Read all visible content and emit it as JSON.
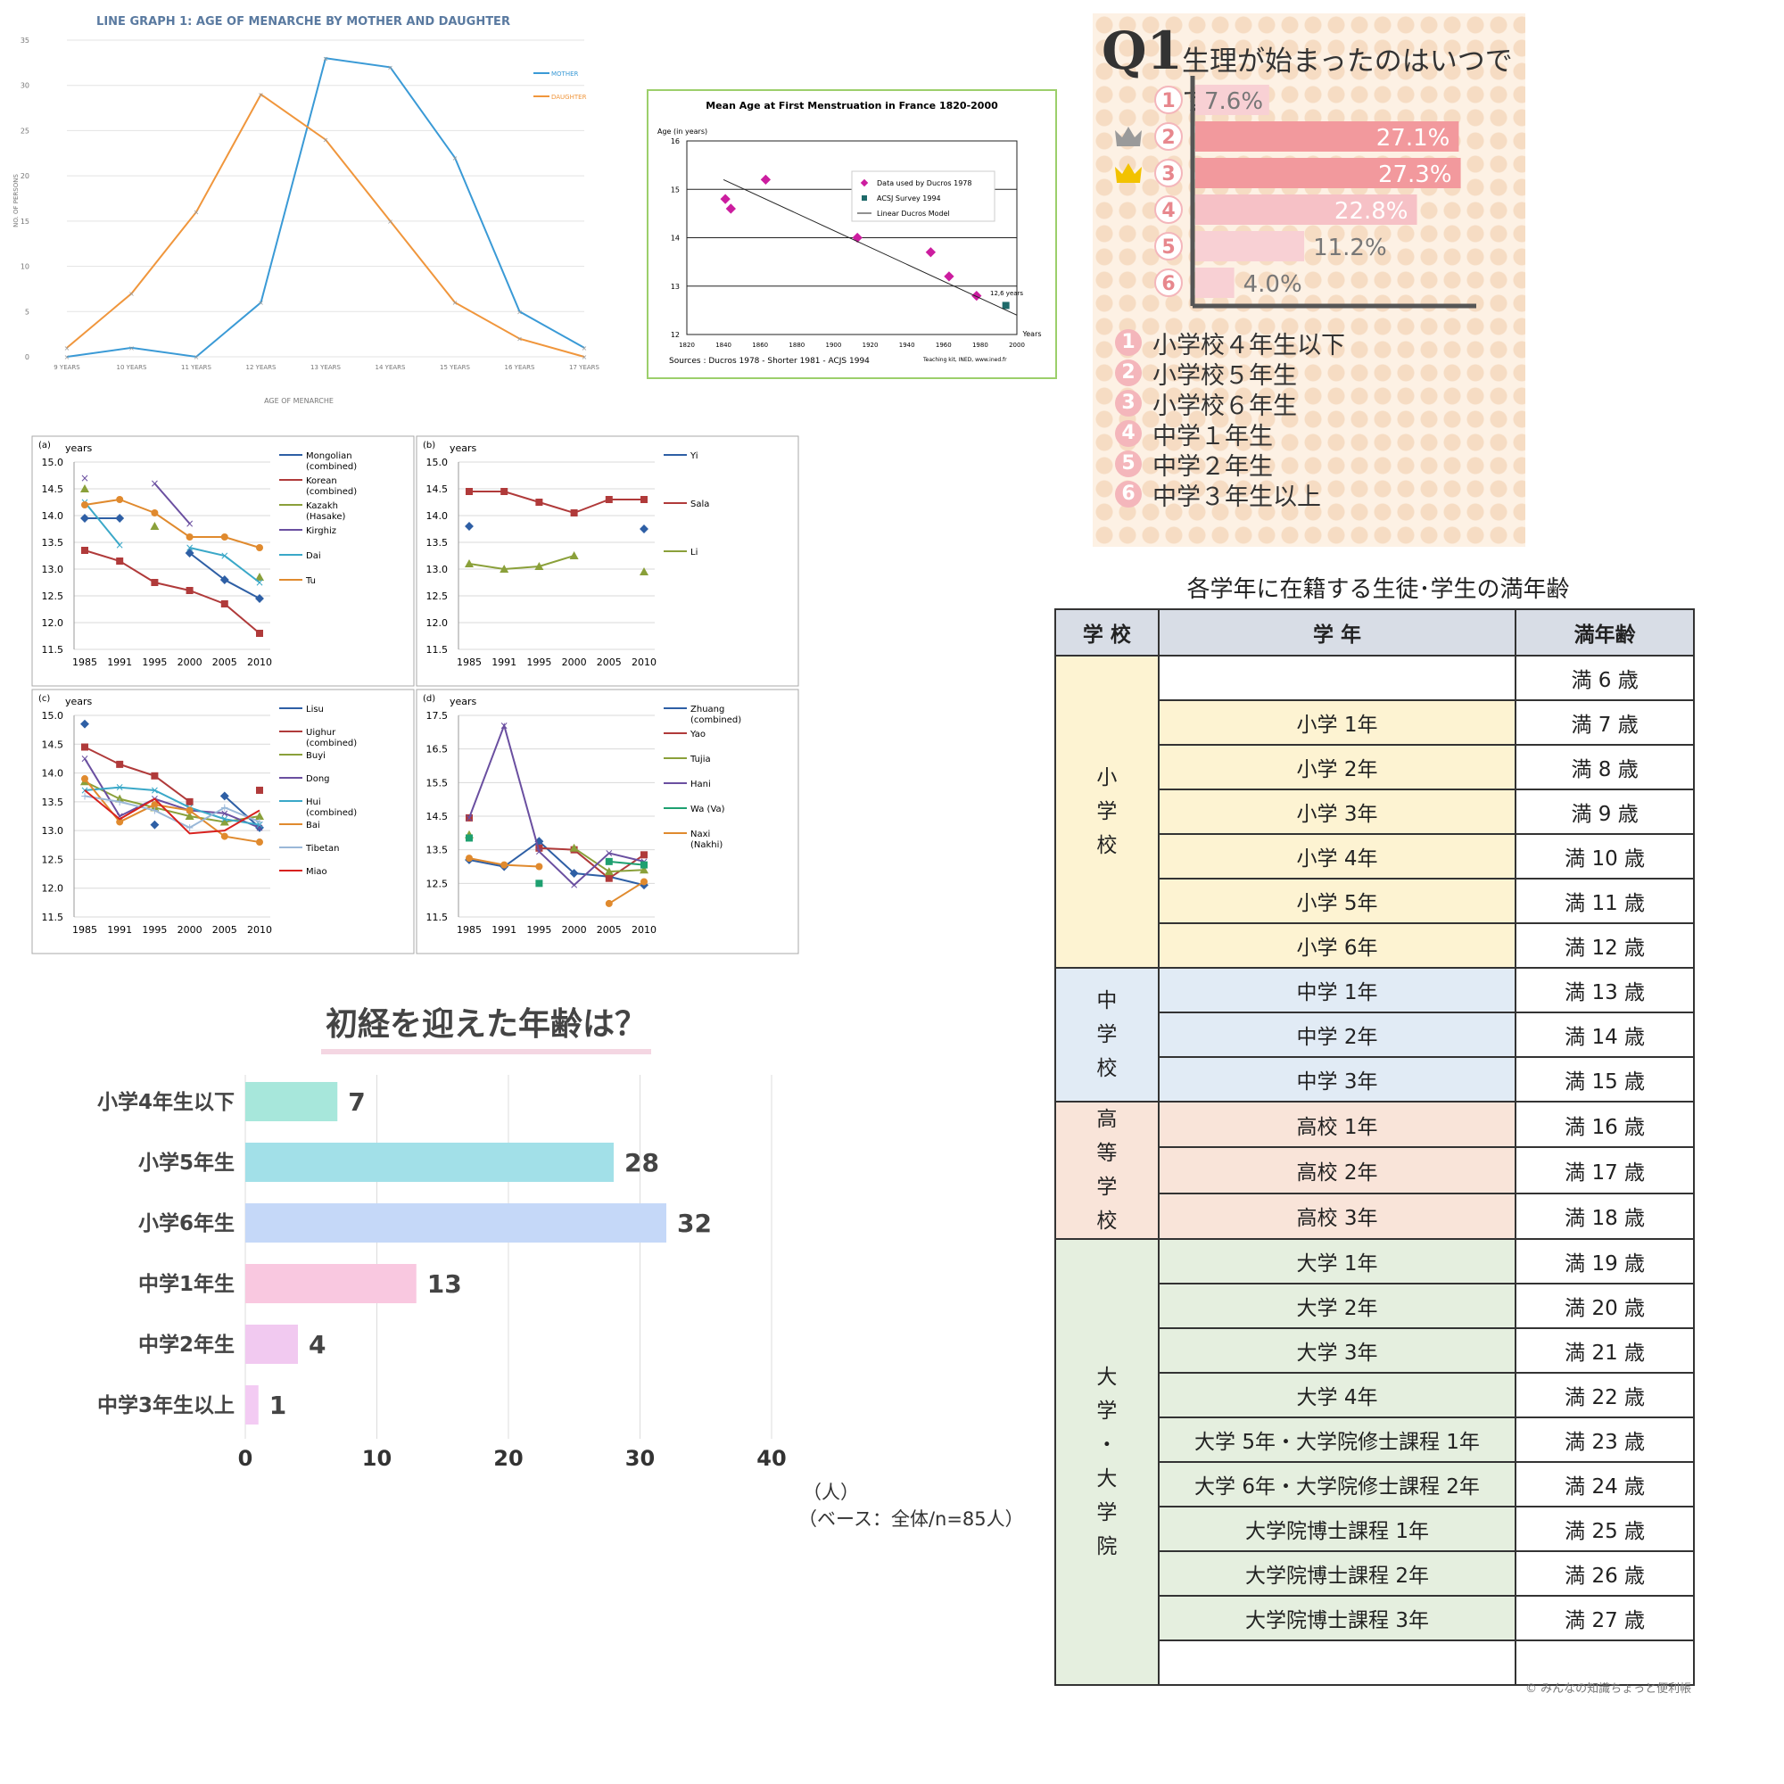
{
  "chart_data": [
    {
      "id": "mother-daughter",
      "type": "line",
      "title": "LINE GRAPH 1: AGE OF MENARCHE BY MOTHER AND DAUGHTER",
      "xlabel": "AGE OF MENARCHE",
      "ylabel": "NO. OF PERSONS",
      "categories": [
        "9 YEARS",
        "10 YEARS",
        "11 YEARS",
        "12 YEARS",
        "13 YEARS",
        "14 YEARS",
        "15 YEARS",
        "16 YEARS",
        "17 YEARS"
      ],
      "ylim": [
        0,
        35
      ],
      "yticks": [
        0,
        5,
        10,
        15,
        20,
        25,
        30,
        35
      ],
      "legend_position": "top-right",
      "series": [
        {
          "name": "MOTHER",
          "color": "#3a9ad6",
          "values": [
            0,
            1,
            0,
            6,
            33,
            32,
            22,
            5,
            1
          ]
        },
        {
          "name": "DAUGHTER",
          "color": "#f0963c",
          "values": [
            1,
            7,
            16,
            29,
            24,
            15,
            6,
            2,
            0
          ]
        }
      ]
    },
    {
      "id": "france",
      "type": "scatter",
      "title": "Mean Age at First Menstruation in France  1820-2000",
      "ylabel": "Age (in years)",
      "xlabel": "Years",
      "xlim": [
        1820,
        2000
      ],
      "ylim": [
        12,
        16
      ],
      "xticks": [
        1820,
        1840,
        1860,
        1880,
        1900,
        1920,
        1940,
        1960,
        1980,
        2000
      ],
      "yticks": [
        12,
        13,
        14,
        15,
        16
      ],
      "legend_position": "top-right",
      "annotation": "12,6 years",
      "sources": "Sources : Ducros 1978 - Shorter 1981 - ACJS 1994",
      "credit": "Teaching kit, INED, www.ined.fr",
      "series": [
        {
          "name": "Data used by Ducros 1978",
          "color": "#cc1d9f",
          "points": [
            [
              1841,
              14.8
            ],
            [
              1844,
              14.6
            ],
            [
              1863,
              15.2
            ],
            [
              1913,
              14.0
            ],
            [
              1953,
              13.7
            ],
            [
              1963,
              13.2
            ],
            [
              1978,
              12.8
            ]
          ]
        },
        {
          "name": "ACSJ Survey 1994",
          "color": "#1e6a6a",
          "points": [
            [
              1994,
              12.6
            ]
          ]
        },
        {
          "name": "Linear Ducros Model",
          "color": "#222222",
          "line": [
            [
              1840,
              15.2
            ],
            [
              2000,
              12.4
            ]
          ]
        }
      ]
    },
    {
      "id": "china-a",
      "type": "line",
      "panel": "(a)",
      "ylabel": "years",
      "categories": [
        "1985",
        "1991",
        "1995",
        "2000",
        "2005",
        "2010"
      ],
      "ylim": [
        11.5,
        15.0
      ],
      "yticks": [
        11.5,
        12.0,
        12.5,
        13.0,
        13.5,
        14.0,
        14.5,
        15.0
      ],
      "legend_position": "right",
      "series": [
        {
          "name": "Mongolian (combined)",
          "color": "#2e5fa5",
          "marker": "diamond",
          "values": [
            13.95,
            13.95,
            null,
            13.3,
            12.8,
            12.45
          ]
        },
        {
          "name": "Korean (combined)",
          "color": "#b03a3a",
          "marker": "square",
          "values": [
            13.35,
            13.15,
            12.75,
            12.6,
            12.35,
            11.8
          ]
        },
        {
          "name": "Kazakh (Hasake)",
          "color": "#8aa03a",
          "marker": "triangle",
          "values": [
            14.5,
            null,
            13.8,
            null,
            null,
            12.85
          ]
        },
        {
          "name": "Kirghiz",
          "color": "#6a4fa0",
          "marker": "x",
          "values": [
            14.7,
            null,
            14.6,
            13.85,
            null,
            null
          ]
        },
        {
          "name": "Dai",
          "color": "#3aa8c8",
          "marker": "star",
          "values": [
            14.25,
            13.45,
            null,
            13.4,
            13.25,
            12.75
          ]
        },
        {
          "name": "Tu",
          "color": "#e08a2e",
          "marker": "circle",
          "values": [
            14.2,
            14.3,
            14.05,
            13.6,
            13.6,
            13.4
          ]
        }
      ]
    },
    {
      "id": "china-b",
      "type": "line",
      "panel": "(b)",
      "ylabel": "years",
      "categories": [
        "1985",
        "1991",
        "1995",
        "2000",
        "2005",
        "2010"
      ],
      "ylim": [
        11.5,
        15.0
      ],
      "yticks": [
        11.5,
        12.0,
        12.5,
        13.0,
        13.5,
        14.0,
        14.5,
        15.0
      ],
      "legend_position": "right",
      "series": [
        {
          "name": "Yi",
          "color": "#2e5fa5",
          "marker": "diamond",
          "values": [
            13.8,
            null,
            null,
            null,
            null,
            13.75
          ]
        },
        {
          "name": "Sala",
          "color": "#b03a3a",
          "marker": "square",
          "values": [
            14.45,
            14.45,
            14.25,
            14.05,
            14.3,
            14.3
          ]
        },
        {
          "name": "Li",
          "color": "#8aa03a",
          "marker": "triangle",
          "values": [
            13.1,
            13.0,
            13.05,
            13.25,
            null,
            12.95
          ]
        }
      ]
    },
    {
      "id": "china-c",
      "type": "line",
      "panel": "(c)",
      "ylabel": "years",
      "categories": [
        "1985",
        "1991",
        "1995",
        "2000",
        "2005",
        "2010"
      ],
      "ylim": [
        11.5,
        15.0
      ],
      "yticks": [
        11.5,
        12.0,
        12.5,
        13.0,
        13.5,
        14.0,
        14.5,
        15.0
      ],
      "legend_position": "right",
      "series": [
        {
          "name": "Lisu",
          "color": "#2e5fa5",
          "marker": "diamond",
          "values": [
            14.85,
            null,
            13.1,
            null,
            13.6,
            13.05
          ]
        },
        {
          "name": "Uighur (combined)",
          "color": "#b03a3a",
          "marker": "square",
          "values": [
            14.45,
            14.15,
            13.95,
            13.5,
            null,
            13.7
          ]
        },
        {
          "name": "Buyi",
          "color": "#8aa03a",
          "marker": "triangle",
          "values": [
            13.85,
            13.55,
            13.4,
            13.25,
            13.15,
            13.25
          ]
        },
        {
          "name": "Dong",
          "color": "#6a4fa0",
          "marker": "x",
          "values": [
            14.25,
            13.25,
            13.55,
            13.35,
            13.3,
            13.05
          ]
        },
        {
          "name": "Hui (combined)",
          "color": "#3aa8c8",
          "marker": "star",
          "values": [
            13.7,
            13.75,
            13.7,
            13.4,
            13.2,
            13.1
          ]
        },
        {
          "name": "Bai",
          "color": "#e08a2e",
          "marker": "circle",
          "values": [
            13.9,
            13.15,
            13.45,
            13.35,
            12.9,
            12.8
          ]
        },
        {
          "name": "Tibetan",
          "color": "#9ab8d8",
          "marker": "plus",
          "values": [
            13.6,
            13.5,
            13.35,
            13.05,
            13.4,
            13.15
          ]
        },
        {
          "name": "Miao",
          "color": "#d8211e",
          "marker": "none",
          "values": [
            13.7,
            13.2,
            13.55,
            12.95,
            13.0,
            13.35
          ]
        }
      ]
    },
    {
      "id": "china-d",
      "type": "line",
      "panel": "(d)",
      "ylabel": "years",
      "categories": [
        "1985",
        "1991",
        "1995",
        "2000",
        "2005",
        "2010"
      ],
      "ylim": [
        11.5,
        17.5
      ],
      "yticks": [
        11.5,
        12.5,
        13.5,
        14.5,
        15.5,
        16.5,
        17.5
      ],
      "legend_position": "right",
      "series": [
        {
          "name": "Zhuang (combined)",
          "color": "#2e5fa5",
          "marker": "diamond",
          "values": [
            13.2,
            13.0,
            13.75,
            12.8,
            12.7,
            12.45
          ]
        },
        {
          "name": "Yao",
          "color": "#b03a3a",
          "marker": "square",
          "values": [
            14.45,
            null,
            13.55,
            13.5,
            12.65,
            13.35
          ]
        },
        {
          "name": "Tujia",
          "color": "#8aa03a",
          "marker": "triangle",
          "values": [
            13.95,
            null,
            null,
            13.55,
            12.85,
            12.9
          ]
        },
        {
          "name": "Hani",
          "color": "#6a4fa0",
          "marker": "x",
          "values": [
            14.45,
            17.2,
            13.45,
            12.45,
            13.4,
            13.15
          ]
        },
        {
          "name": "Wa (Va)",
          "color": "#1ea070",
          "marker": "square",
          "values": [
            13.85,
            null,
            12.5,
            null,
            13.15,
            13.05
          ]
        },
        {
          "name": "Naxi (Nakhi)",
          "color": "#e08a2e",
          "marker": "circle",
          "values": [
            13.25,
            13.05,
            13.0,
            null,
            11.9,
            12.55
          ]
        }
      ]
    },
    {
      "id": "first-period-age",
      "type": "bar",
      "orientation": "horizontal",
      "title": "初経を迎えた年齢は？",
      "categories": [
        "小学4年生以下",
        "小学5年生",
        "小学6年生",
        "中学1年生",
        "中学2年生",
        "中学3年生以上"
      ],
      "values": [
        7,
        28,
        32,
        13,
        4,
        1
      ],
      "colors": [
        "#a7e7db",
        "#a2e0e8",
        "#c5d8f8",
        "#f9c8e0",
        "#f1c9f0",
        "#f3cbf3"
      ],
      "xlim": [
        0,
        40
      ],
      "xticks": [
        0,
        10,
        20,
        30,
        40
      ],
      "unit": "（人）",
      "base": "（ベース：全体/n=85人）"
    },
    {
      "id": "q1",
      "type": "bar",
      "orientation": "horizontal",
      "title": "生理が始まったのはいつですか?",
      "question_label": "Q1",
      "categories": [
        "1",
        "2",
        "3",
        "4",
        "5",
        "6"
      ],
      "values": [
        7.6,
        27.1,
        27.3,
        22.8,
        11.2,
        4.0
      ],
      "value_labels": [
        "7.6%",
        "27.1%",
        "27.3%",
        "22.8%",
        "11.2%",
        "4.0%"
      ],
      "colors": [
        "#f8d0d4",
        "#f2999d",
        "#f2999d",
        "#f6c1c6",
        "#f8d0d4",
        "#f8d0d4"
      ],
      "rank_crowns": {
        "1": "2",
        "2": "3"
      },
      "legend": [
        "小学校４年生以下",
        "小学校５年生",
        "小学校６年生",
        "中学１年生",
        "中学２年生",
        "中学３年生以上"
      ]
    },
    {
      "id": "grade-age-table",
      "type": "table",
      "title": "各学年に在籍する生徒･学生の満年齢",
      "headers": [
        "学 校",
        "学 年",
        "満年齢"
      ],
      "schools": [
        {
          "name": "小学校",
          "chars": [
            "小",
            "学",
            "校"
          ],
          "grades": [
            "小学 1年",
            "小学 2年",
            "小学 3年",
            "小学 4年",
            "小学 5年",
            "小学 6年"
          ]
        },
        {
          "name": "中学校",
          "chars": [
            "中",
            "学",
            "校"
          ],
          "grades": [
            "中学 1年",
            "中学 2年",
            "中学 3年"
          ]
        },
        {
          "name": "高等学校",
          "chars": [
            "高",
            "等",
            "学",
            "校"
          ],
          "grades": [
            "高校 1年",
            "高校 2年",
            "高校 3年"
          ]
        },
        {
          "name": "大学・大学院",
          "chars": [
            "大",
            "学",
            "・",
            "大",
            "学",
            "院"
          ],
          "grades": [
            "大学 1年",
            "大学 2年",
            "大学 3年",
            "大学 4年",
            "大学 5年・大学院修士課程 1年",
            "大学 6年・大学院修士課程 2年",
            "大学院博士課程 1年",
            "大学院博士課程 2年",
            "大学院博士課程 3年"
          ]
        }
      ],
      "ages": [
        "満 6 歳",
        "満 7 歳",
        "満 8 歳",
        "満 9 歳",
        "満 10 歳",
        "満 11 歳",
        "満 12 歳",
        "満 13 歳",
        "満 14 歳",
        "満 15 歳",
        "満 16 歳",
        "満 17 歳",
        "満 18 歳",
        "満 19 歳",
        "満 20 歳",
        "満 21 歳",
        "満 22 歳",
        "満 23 歳",
        "満 24 歳",
        "満 25 歳",
        "満 26 歳",
        "満 27 歳"
      ],
      "copyright": "© みんなの知識ちょっと便利帳"
    }
  ]
}
